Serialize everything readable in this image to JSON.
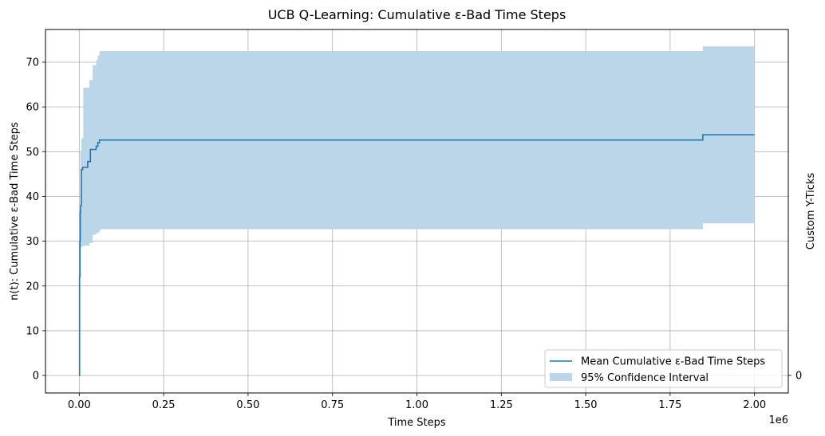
{
  "chart_data": {
    "type": "line",
    "title": "UCB Q-Learning: Cumulative ε-Bad Time Steps",
    "xlabel": "Time Steps",
    "ylabel": "n(t): Cumulative ε-Bad Time Steps",
    "right_ylabel": "Custom Y-Ticks",
    "x_offset_label": "1e6",
    "xlim": [
      -0.1,
      2.1
    ],
    "ylim": [
      -3.9,
      77.3
    ],
    "x_scale_note_factor": 1000000,
    "xticks": [
      0.0,
      0.25,
      0.5,
      0.75,
      1.0,
      1.25,
      1.5,
      1.75,
      2.0
    ],
    "xtick_labels": [
      "0.00",
      "0.25",
      "0.50",
      "0.75",
      "1.00",
      "1.25",
      "1.50",
      "1.75",
      "2.00"
    ],
    "yticks": [
      0,
      10,
      20,
      30,
      40,
      50,
      60,
      70
    ],
    "ytick_labels": [
      "0",
      "10",
      "20",
      "30",
      "40",
      "50",
      "60",
      "70"
    ],
    "right_yticks": [
      0
    ],
    "right_ytick_labels": [
      "0"
    ],
    "grid": true,
    "legend_placement": "lower-right",
    "colors": {
      "line": "#1f77b4",
      "band": "#bbd6e8",
      "grid": "#b0b0b0"
    },
    "series": [
      {
        "name": "Mean Cumulative ε-Bad Time Steps",
        "kind": "step-line",
        "x": [
          0.0,
          0.001,
          0.002,
          0.003,
          0.004,
          0.006,
          0.01,
          0.025,
          0.033,
          0.04,
          0.05,
          0.055,
          0.06,
          0.065,
          1.845,
          1.847,
          2.0
        ],
        "y": [
          0.0,
          22.0,
          30.0,
          36.5,
          38.0,
          46.0,
          46.5,
          47.8,
          50.5,
          50.5,
          51.2,
          52.0,
          52.6,
          52.6,
          52.6,
          53.8,
          53.8
        ]
      },
      {
        "name": "95% Confidence Interval",
        "kind": "band",
        "x": [
          0.0,
          0.003,
          0.006,
          0.012,
          0.03,
          0.04,
          0.05,
          0.055,
          0.06,
          0.065,
          1.845,
          1.847,
          2.0
        ],
        "lower": [
          0.0,
          28.5,
          28.8,
          29.0,
          29.6,
          31.5,
          31.8,
          32.0,
          32.5,
          32.7,
          32.7,
          34.0,
          34.0
        ],
        "upper": [
          0.0,
          50.0,
          53.0,
          64.3,
          66.0,
          69.3,
          70.5,
          71.5,
          72.5,
          72.5,
          72.5,
          73.5,
          73.5
        ]
      }
    ]
  }
}
